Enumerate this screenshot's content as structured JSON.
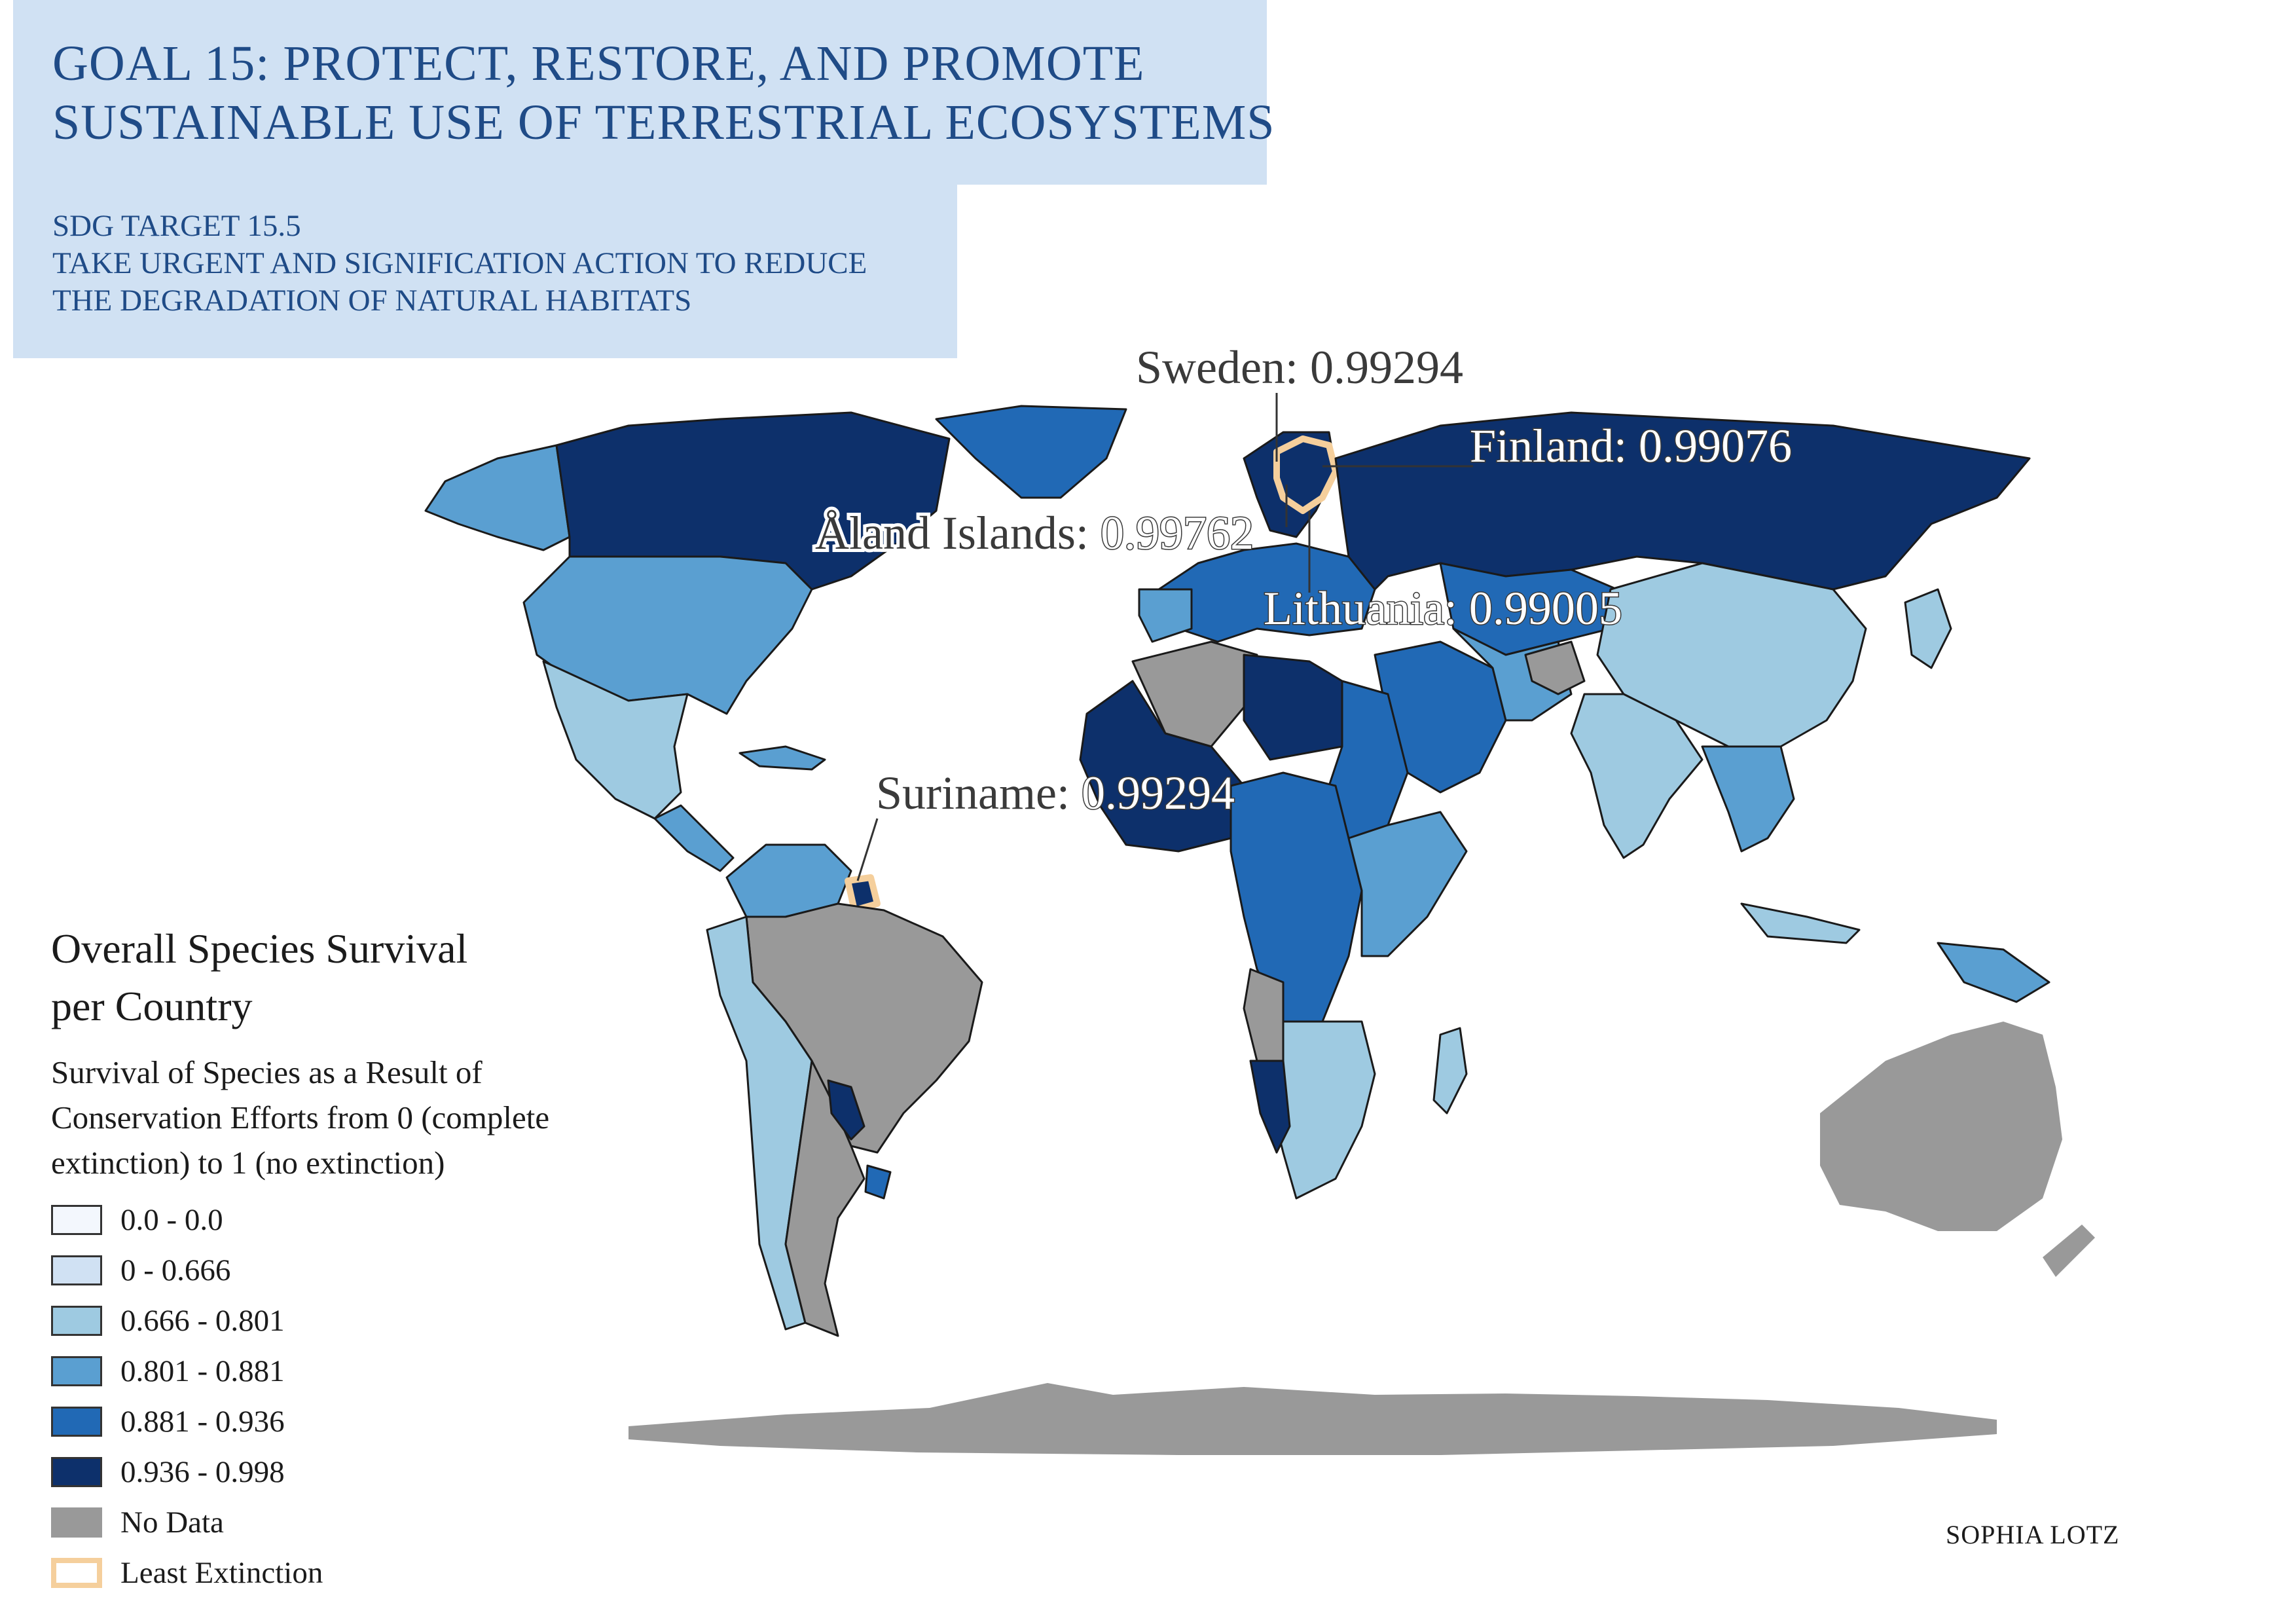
{
  "header": {
    "title_lines": [
      "GOAL 15: PROTECT, RESTORE, AND PROMOTE",
      "SUSTAINABLE USE OF TERRESTRIAL ECOSYSTEMS"
    ],
    "subtitle_lines": [
      "SDG TARGET 15.5",
      "TAKE URGENT AND SIGNIFICATION ACTION TO REDUCE",
      "THE DEGRADATION OF NATURAL HABITATS"
    ]
  },
  "callouts": [
    {
      "country": "Sweden",
      "value": "0.99294"
    },
    {
      "country": "Finland",
      "value": "0.99076"
    },
    {
      "country": "Åland Islands",
      "value": "0.99762"
    },
    {
      "country": "Lithuania",
      "value": "0.99005"
    },
    {
      "country": "Suriname",
      "value": "0.99294"
    }
  ],
  "legend": {
    "title_lines": [
      "Overall Species Survival",
      "per Country"
    ],
    "subtitle_lines": [
      "Survival of Species as a Result of",
      "Conservation Efforts from 0 (complete",
      "extinction) to 1 (no extinction)"
    ],
    "items": [
      {
        "label": "0.0 - 0.0",
        "color": "#f3f7fd"
      },
      {
        "label": "0 - 0.666",
        "color": "#d0e1f3"
      },
      {
        "label": "0.666 - 0.801",
        "color": "#9ecae1"
      },
      {
        "label": "0.801 - 0.881",
        "color": "#5a9fd1"
      },
      {
        "label": "0.881 - 0.936",
        "color": "#2169b5"
      },
      {
        "label": "0.936 - 0.998",
        "color": "#0d306b"
      },
      {
        "label": "No Data",
        "color": "#999999"
      },
      {
        "label": "Least Extinction",
        "color": "#f5cf9c"
      }
    ]
  },
  "colors": {
    "class_1": "#d0e1f3",
    "class_2": "#9ecae1",
    "class_3": "#5a9fd1",
    "class_4": "#2169b5",
    "class_5": "#0d306b",
    "no_data": "#999999",
    "least_extinction": "#f5cf9c"
  },
  "credit": "SOPHIA LOTZ"
}
